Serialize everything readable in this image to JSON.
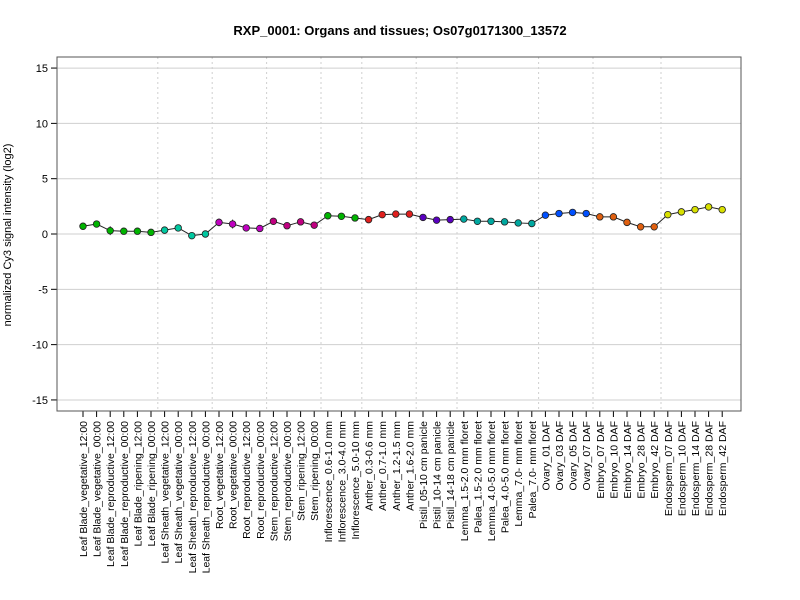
{
  "chart_data": {
    "type": "line",
    "title": "RXP_0001: Organs and tissues; Os07g0171300_13572",
    "ylabel": "normalized Cy3 signal intensity (log2)",
    "xlabel": "",
    "ylim": [
      -16,
      16
    ],
    "yticks": [
      -15,
      -10,
      -5,
      0,
      5,
      10,
      15
    ],
    "grid": true,
    "categories": [
      "Leaf Blade_vegetative_12:00",
      "Leaf Blade_vegetative_00:00",
      "Leaf Blade_reproductive_12:00",
      "Leaf Blade_reproductive_00:00",
      "Leaf Blade_ripening_12:00",
      "Leaf Blade_ripening_00:00",
      "Leaf Sheath_vegetative_12:00",
      "Leaf Sheath_vegetative_00:00",
      "Leaf Sheath_reproductive_12:00",
      "Leaf Sheath_reproductive_00:00",
      "Root_vegetative_12:00",
      "Root_vegetative_00:00",
      "Root_reproductive_12:00",
      "Root_reproductive_00:00",
      "Stem_reproductive_12:00",
      "Stem_reproductive_00:00",
      "Stem_ripening_12:00",
      "Stem_ripening_00:00",
      "Inflorescence_0.6-1.0 mm",
      "Inflorescence_3.0-4.0 mm",
      "Inflorescence_5.0-10 mm",
      "Anther_0.3-0.6 mm",
      "Anther_0.7-1.0 mm",
      "Anther_1.2-1.5 mm",
      "Anther_1.6-2.0 mm",
      "Pistil_05-10 cm panicle",
      "Pistil_10-14 cm panicle",
      "Pistil_14-18 cm panicle",
      "Lemma_1.5-2.0 mm floret",
      "Palea_1.5-2.0 mm floret",
      "Lemma_4.0-5.0 mm floret",
      "Palea_4.0-5.0 mm floret",
      "Lemma_7.0- mm floret",
      "Palea_7.0- mm floret",
      "Ovary_01 DAF",
      "Ovary_03 DAF",
      "Ovary_05 DAF",
      "Ovary_07 DAF",
      "Embryo_07 DAF",
      "Embryo_10 DAF",
      "Embryo_14 DAF",
      "Embryo_28 DAF",
      "Embryo_42 DAF",
      "Endosperm_07 DAF",
      "Endosperm_10 DAF",
      "Endosperm_14 DAF",
      "Endosperm_28 DAF",
      "Endosperm_42 DAF"
    ],
    "values": [
      0.7,
      0.9,
      0.3,
      0.25,
      0.25,
      0.15,
      0.35,
      0.55,
      -0.15,
      0.0,
      1.05,
      0.9,
      0.55,
      0.5,
      1.15,
      0.75,
      1.1,
      0.8,
      1.65,
      1.6,
      1.45,
      1.3,
      1.75,
      1.8,
      1.8,
      1.5,
      1.25,
      1.3,
      1.35,
      1.15,
      1.15,
      1.1,
      1.0,
      0.95,
      1.7,
      1.85,
      1.95,
      1.85,
      1.55,
      1.55,
      1.05,
      0.65,
      0.65,
      1.75,
      2.0,
      2.2,
      2.45,
      2.2
    ],
    "errors": [
      0.15,
      0.2,
      0.4,
      0.15,
      0.1,
      0.1,
      0.15,
      0.2,
      0.15,
      0.1,
      0.35,
      0.4,
      0.1,
      0.1,
      0.1,
      0.1,
      0.1,
      0.1,
      0.1,
      0.1,
      0.1,
      0.1,
      0.1,
      0.1,
      0.1,
      0.25,
      0.1,
      0.1,
      0.1,
      0.1,
      0.1,
      0.1,
      0.1,
      0.1,
      0.1,
      0.1,
      0.1,
      0.15,
      0.1,
      0.1,
      0.1,
      0.1,
      0.1,
      0.1,
      0.1,
      0.1,
      0.1,
      0.1
    ],
    "colors": [
      "#00b400",
      "#00b400",
      "#00b400",
      "#00b400",
      "#00b400",
      "#00b400",
      "#00c8a0",
      "#00c8a0",
      "#00c8a0",
      "#00c8a0",
      "#c000c0",
      "#c000c0",
      "#c000c0",
      "#c000c0",
      "#c00080",
      "#c00080",
      "#c00080",
      "#c00080",
      "#00b400",
      "#00b400",
      "#00b400",
      "#e0201e",
      "#e0201e",
      "#e0201e",
      "#e0201e",
      "#5a00c0",
      "#5a00c0",
      "#5a00c0",
      "#00a8a0",
      "#00a8a0",
      "#00a8a0",
      "#00a8a0",
      "#00a8a0",
      "#00a8a0",
      "#0050ff",
      "#0050ff",
      "#0050ff",
      "#0050ff",
      "#e06010",
      "#e06010",
      "#e06010",
      "#e06010",
      "#e06010",
      "#d8e000",
      "#d8e000",
      "#d8e000",
      "#d8e000",
      "#d8e000"
    ],
    "group_separators_after": [
      5,
      9,
      13,
      17,
      20,
      24,
      27,
      33,
      37,
      42
    ]
  }
}
